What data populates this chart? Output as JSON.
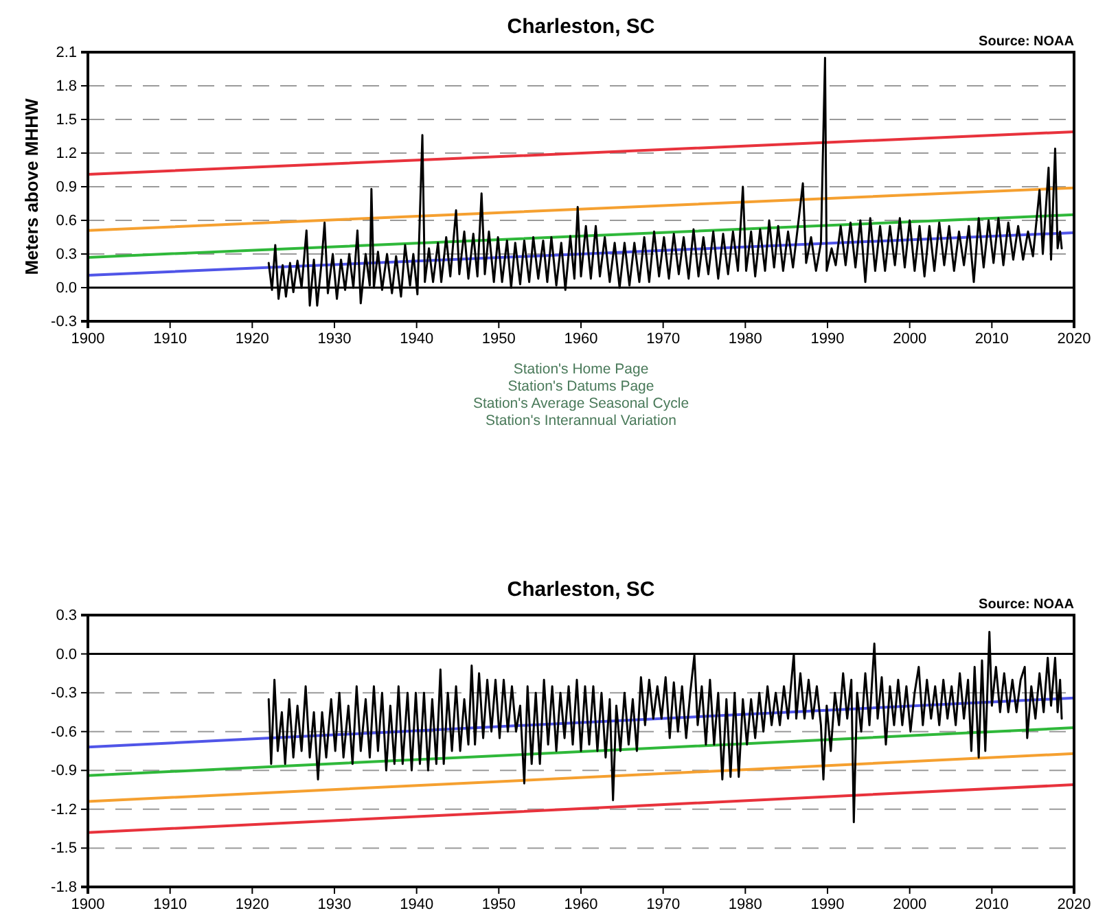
{
  "chart_data": [
    {
      "type": "line",
      "title": "Charleston, SC",
      "ylabel": "Meters above MHHW",
      "annotations": [
        "Source: NOAA",
        "Station's Home Page",
        "Station's Datums Page",
        "Station's Average Seasonal Cycle",
        "Station's Interannual Variation"
      ],
      "xlim": [
        1900,
        2020
      ],
      "xticks": [
        1900,
        1910,
        1920,
        1930,
        1940,
        1950,
        1960,
        1970,
        1980,
        1990,
        2000,
        2010,
        2020
      ],
      "ylim": [
        -0.3,
        2.1
      ],
      "yticks": [
        -0.3,
        {
          "value": 0,
          "label": "0.0"
        },
        0.3,
        0.6,
        0.9,
        1.2,
        1.5,
        1.8,
        2.1
      ],
      "grid": "y",
      "line_style": "solid",
      "marker": "none",
      "ref_lines": [
        {
          "axis": "y",
          "value": 0,
          "color": "#000000"
        }
      ],
      "series": [
        {
          "type": "line",
          "color": "#e8323c",
          "x": [
            1900,
            2020
          ],
          "values": [
            1.01,
            1.39
          ]
        },
        {
          "type": "line",
          "color": "#f5a030",
          "x": [
            1900,
            2020
          ],
          "values": [
            0.51,
            0.89
          ]
        },
        {
          "type": "line",
          "color": "#2fb83a",
          "x": [
            1900,
            2020
          ],
          "values": [
            0.27,
            0.65
          ]
        },
        {
          "type": "line",
          "color": "#5055e8",
          "x": [
            1900,
            2020
          ],
          "values": [
            0.11,
            0.49
          ]
        },
        {
          "type": "line",
          "color": "#000000",
          "x": [
            1922.0,
            1922.4,
            1922.8,
            1923.2,
            1923.7,
            1924.1,
            1924.6,
            1925.0,
            1925.5,
            1926.0,
            1926.6,
            1927.0,
            1927.5,
            1927.9,
            1928.4,
            1928.8,
            1929.2,
            1929.8,
            1930.3,
            1930.8,
            1931.3,
            1931.8,
            1932.3,
            1932.8,
            1933.2,
            1933.8,
            1934.3,
            1934.5,
            1934.8,
            1935.3,
            1935.8,
            1936.4,
            1937.0,
            1937.5,
            1938.1,
            1938.6,
            1939.2,
            1939.6,
            1940.1,
            1940.7,
            1941.0,
            1941.5,
            1942.0,
            1942.6,
            1943.0,
            1943.6,
            1944.1,
            1944.8,
            1945.2,
            1945.8,
            1946.3,
            1946.9,
            1947.4,
            1947.9,
            1948.3,
            1948.8,
            1949.4,
            1949.9,
            1950.4,
            1951.0,
            1951.5,
            1952.0,
            1952.6,
            1953.1,
            1953.7,
            1954.2,
            1954.8,
            1955.4,
            1955.9,
            1956.4,
            1957.0,
            1957.6,
            1958.1,
            1958.7,
            1959.2,
            1959.6,
            1960.0,
            1960.6,
            1961.2,
            1961.8,
            1962.3,
            1962.9,
            1963.5,
            1964.1,
            1964.7,
            1965.3,
            1965.9,
            1966.5,
            1967.1,
            1967.7,
            1968.3,
            1968.9,
            1969.5,
            1970.1,
            1970.7,
            1971.3,
            1971.9,
            1972.5,
            1973.1,
            1973.7,
            1974.3,
            1974.9,
            1975.5,
            1976.1,
            1976.7,
            1977.3,
            1977.9,
            1978.5,
            1979.1,
            1979.7,
            1980.1,
            1980.7,
            1981.2,
            1981.8,
            1982.4,
            1982.9,
            1983.5,
            1984.0,
            1984.6,
            1985.2,
            1985.8,
            1986.4,
            1987.0,
            1987.4,
            1988.0,
            1988.6,
            1989.2,
            1989.7,
            1989.9,
            1990.5,
            1991.0,
            1991.6,
            1992.2,
            1992.8,
            1993.4,
            1994.0,
            1994.6,
            1995.2,
            1995.8,
            1996.4,
            1997.0,
            1997.6,
            1998.2,
            1998.8,
            1999.4,
            2000.0,
            2000.6,
            2001.2,
            2001.8,
            2002.4,
            2003.0,
            2003.6,
            2004.2,
            2004.8,
            2005.4,
            2006.0,
            2006.6,
            2007.2,
            2007.8,
            2008.4,
            2009.0,
            2009.6,
            2010.2,
            2010.8,
            2011.4,
            2012.0,
            2012.6,
            2013.2,
            2013.8,
            2014.4,
            2015.0,
            2015.8,
            2016.2,
            2016.9,
            2017.2,
            2017.7,
            2018.0,
            2018.3,
            2018.5
          ],
          "values": [
            0.22,
            -0.02,
            0.38,
            -0.1,
            0.2,
            -0.08,
            0.22,
            -0.04,
            0.24,
            0.0,
            0.51,
            -0.16,
            0.25,
            -0.16,
            0.2,
            0.58,
            -0.05,
            0.3,
            -0.1,
            0.25,
            -0.02,
            0.3,
            0.0,
            0.51,
            -0.14,
            0.3,
            0.02,
            0.88,
            0.0,
            0.32,
            -0.02,
            0.3,
            -0.05,
            0.28,
            -0.08,
            0.38,
            0.02,
            0.3,
            -0.06,
            1.36,
            0.05,
            0.35,
            0.05,
            0.4,
            0.05,
            0.45,
            0.1,
            0.69,
            0.12,
            0.5,
            0.08,
            0.48,
            0.1,
            0.84,
            0.12,
            0.5,
            0.05,
            0.45,
            0.05,
            0.42,
            0.0,
            0.4,
            0.03,
            0.42,
            0.05,
            0.45,
            0.08,
            0.42,
            0.05,
            0.45,
            0.02,
            0.4,
            -0.02,
            0.46,
            0.08,
            0.72,
            0.1,
            0.55,
            0.08,
            0.55,
            0.1,
            0.45,
            0.05,
            0.4,
            0.0,
            0.4,
            0.02,
            0.4,
            0.05,
            0.45,
            0.05,
            0.5,
            0.1,
            0.45,
            0.08,
            0.48,
            0.12,
            0.45,
            0.08,
            0.52,
            0.1,
            0.45,
            0.12,
            0.5,
            0.08,
            0.48,
            0.12,
            0.5,
            0.15,
            0.9,
            0.15,
            0.5,
            0.1,
            0.52,
            0.15,
            0.6,
            0.18,
            0.55,
            0.15,
            0.5,
            0.18,
            0.55,
            0.93,
            0.22,
            0.45,
            0.15,
            0.4,
            2.05,
            0.15,
            0.35,
            0.2,
            0.55,
            0.2,
            0.58,
            0.18,
            0.6,
            0.05,
            0.62,
            0.15,
            0.55,
            0.15,
            0.55,
            0.2,
            0.62,
            0.18,
            0.6,
            0.15,
            0.55,
            0.1,
            0.55,
            0.15,
            0.58,
            0.2,
            0.55,
            0.15,
            0.5,
            0.2,
            0.55,
            0.05,
            0.62,
            0.18,
            0.6,
            0.22,
            0.62,
            0.2,
            0.58,
            0.25,
            0.55,
            0.25,
            0.5,
            0.28,
            0.87,
            0.3,
            1.07,
            0.25,
            1.24,
            0.35,
            0.5,
            0.35
          ]
        }
      ]
    },
    {
      "type": "line",
      "title": "Charleston, SC",
      "annotations": [
        "Source: NOAA"
      ],
      "xlim": [
        1900,
        2020
      ],
      "xticks": [
        1900,
        1910,
        1920,
        1930,
        1940,
        1950,
        1960,
        1970,
        1980,
        1990,
        2000,
        2010,
        2020
      ],
      "ylim": [
        -1.8,
        0.3
      ],
      "yticks": [
        -1.8,
        -1.5,
        -1.2,
        -0.9,
        -0.6,
        -0.3,
        {
          "value": 0,
          "label": "0.0"
        },
        0.3
      ],
      "grid": "y",
      "line_style": "solid",
      "marker": "none",
      "ref_lines": [
        {
          "axis": "y",
          "value": 0,
          "color": "#000000"
        }
      ],
      "series": [
        {
          "type": "line",
          "color": "#5055e8",
          "x": [
            1900,
            2020
          ],
          "values": [
            -0.72,
            -0.34
          ]
        },
        {
          "type": "line",
          "color": "#2fb83a",
          "x": [
            1900,
            2020
          ],
          "values": [
            -0.94,
            -0.57
          ]
        },
        {
          "type": "line",
          "color": "#f5a030",
          "x": [
            1900,
            2020
          ],
          "values": [
            -1.14,
            -0.77
          ]
        },
        {
          "type": "line",
          "color": "#e8323c",
          "x": [
            1900,
            2020
          ],
          "values": [
            -1.38,
            -1.01
          ]
        },
        {
          "type": "line",
          "color": "#000000",
          "x": [
            1922.0,
            1922.3,
            1922.7,
            1923.1,
            1923.6,
            1924.0,
            1924.5,
            1925.0,
            1925.5,
            1926.0,
            1926.5,
            1927.0,
            1927.5,
            1928.0,
            1928.5,
            1929.0,
            1929.6,
            1930.1,
            1930.6,
            1931.1,
            1931.7,
            1932.2,
            1932.7,
            1933.2,
            1933.8,
            1934.3,
            1934.8,
            1935.3,
            1935.8,
            1936.3,
            1936.8,
            1937.3,
            1937.8,
            1938.3,
            1938.9,
            1939.4,
            1939.9,
            1940.4,
            1940.9,
            1941.4,
            1941.9,
            1942.4,
            1942.9,
            1943.3,
            1943.8,
            1944.3,
            1944.8,
            1945.3,
            1945.8,
            1946.3,
            1946.7,
            1947.1,
            1947.6,
            1948.1,
            1948.6,
            1949.1,
            1949.6,
            1950.1,
            1950.6,
            1951.1,
            1951.6,
            1952.1,
            1952.6,
            1953.1,
            1953.5,
            1954.0,
            1954.5,
            1955.0,
            1955.5,
            1956.0,
            1956.5,
            1957.0,
            1957.5,
            1958.0,
            1958.5,
            1959.0,
            1959.5,
            1960.0,
            1960.5,
            1961.0,
            1961.5,
            1962.0,
            1962.5,
            1963.0,
            1963.5,
            1963.9,
            1964.3,
            1964.8,
            1965.3,
            1965.8,
            1966.3,
            1966.8,
            1967.3,
            1967.8,
            1968.3,
            1968.8,
            1969.3,
            1969.8,
            1970.3,
            1970.8,
            1971.3,
            1971.8,
            1972.3,
            1972.8,
            1973.3,
            1973.8,
            1974.2,
            1974.7,
            1975.2,
            1975.7,
            1976.2,
            1976.7,
            1977.2,
            1977.7,
            1978.2,
            1978.7,
            1979.2,
            1979.7,
            1980.2,
            1980.7,
            1981.2,
            1981.7,
            1982.2,
            1982.7,
            1983.2,
            1983.7,
            1984.2,
            1984.7,
            1985.2,
            1985.9,
            1986.2,
            1986.7,
            1987.2,
            1987.7,
            1988.2,
            1988.7,
            1989.2,
            1989.5,
            1989.9,
            1990.4,
            1990.9,
            1991.4,
            1991.9,
            1992.4,
            1992.9,
            1993.2,
            1993.6,
            1994.1,
            1994.6,
            1995.1,
            1995.7,
            1996.1,
            1996.6,
            1997.1,
            1997.6,
            1998.1,
            1998.6,
            1999.1,
            1999.6,
            2000.1,
            2000.6,
            2001.1,
            2001.6,
            2002.1,
            2002.6,
            2003.1,
            2003.6,
            2004.1,
            2004.6,
            2005.1,
            2005.6,
            2006.1,
            2006.6,
            2007.1,
            2007.5,
            2007.9,
            2008.4,
            2008.8,
            2009.2,
            2009.7,
            2010.0,
            2010.5,
            2011.0,
            2011.5,
            2012.0,
            2012.5,
            2013.0,
            2013.5,
            2014.0,
            2014.3,
            2014.8,
            2015.3,
            2015.8,
            2016.3,
            2016.8,
            2017.2,
            2017.7,
            2018.0,
            2018.3,
            2018.5
          ],
          "values": [
            -0.35,
            -0.85,
            -0.2,
            -0.75,
            -0.45,
            -0.85,
            -0.35,
            -0.8,
            -0.4,
            -0.75,
            -0.25,
            -0.8,
            -0.45,
            -0.97,
            -0.45,
            -0.8,
            -0.35,
            -0.75,
            -0.3,
            -0.8,
            -0.4,
            -0.85,
            -0.25,
            -0.75,
            -0.35,
            -0.8,
            -0.25,
            -0.75,
            -0.3,
            -0.9,
            -0.4,
            -0.85,
            -0.25,
            -0.85,
            -0.3,
            -0.9,
            -0.3,
            -0.85,
            -0.3,
            -0.9,
            -0.35,
            -0.85,
            -0.12,
            -0.85,
            -0.3,
            -0.75,
            -0.25,
            -0.75,
            -0.35,
            -0.7,
            -0.09,
            -0.7,
            -0.15,
            -0.65,
            -0.2,
            -0.6,
            -0.2,
            -0.65,
            -0.2,
            -0.6,
            -0.25,
            -0.6,
            -0.4,
            -1.0,
            -0.25,
            -0.85,
            -0.3,
            -0.85,
            -0.2,
            -0.7,
            -0.25,
            -0.75,
            -0.3,
            -0.65,
            -0.25,
            -0.7,
            -0.2,
            -0.75,
            -0.25,
            -0.7,
            -0.25,
            -0.75,
            -0.3,
            -0.8,
            -0.35,
            -1.13,
            -0.4,
            -0.75,
            -0.3,
            -0.7,
            -0.35,
            -0.75,
            -0.18,
            -0.55,
            -0.2,
            -0.5,
            -0.25,
            -0.5,
            -0.18,
            -0.65,
            -0.22,
            -0.6,
            -0.25,
            -0.65,
            -0.3,
            -0.01,
            -0.55,
            -0.25,
            -0.7,
            -0.2,
            -0.7,
            -0.3,
            -0.97,
            -0.35,
            -0.95,
            -0.3,
            -0.95,
            -0.35,
            -0.7,
            -0.35,
            -0.65,
            -0.3,
            -0.6,
            -0.25,
            -0.55,
            -0.3,
            -0.55,
            -0.25,
            -0.5,
            0.0,
            -0.5,
            -0.15,
            -0.5,
            -0.2,
            -0.5,
            -0.25,
            -0.55,
            -0.97,
            -0.4,
            -0.75,
            -0.3,
            -0.55,
            -0.15,
            -0.5,
            -0.2,
            -1.3,
            -0.3,
            -0.6,
            -0.15,
            -0.55,
            0.08,
            -0.5,
            -0.18,
            -0.7,
            -0.25,
            -0.55,
            -0.2,
            -0.55,
            -0.25,
            -0.6,
            -0.3,
            -0.1,
            -0.55,
            -0.2,
            -0.5,
            -0.25,
            -0.55,
            -0.2,
            -0.5,
            -0.25,
            -0.55,
            -0.15,
            -0.5,
            -0.2,
            -0.75,
            -0.1,
            -0.8,
            -0.05,
            -0.75,
            0.17,
            -0.4,
            -0.1,
            -0.45,
            -0.15,
            -0.45,
            -0.2,
            -0.45,
            -0.2,
            -0.1,
            -0.65,
            -0.25,
            -0.5,
            -0.15,
            -0.45,
            -0.03,
            -0.4,
            -0.03,
            -0.45,
            -0.2,
            -0.5
          ]
        }
      ]
    }
  ]
}
